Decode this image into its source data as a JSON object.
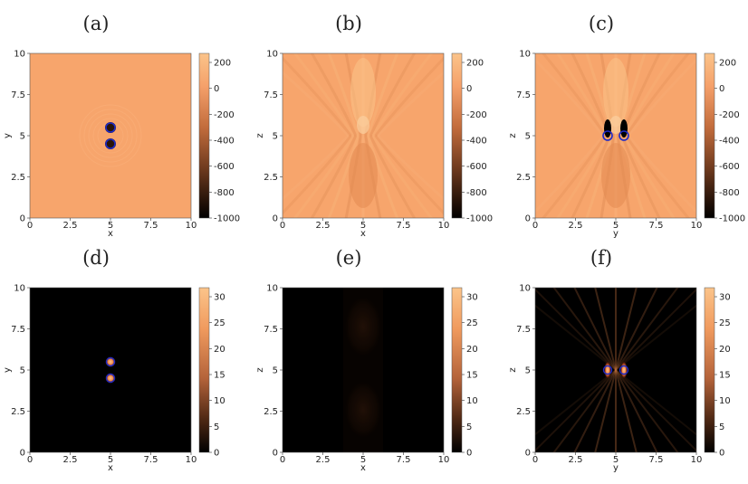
{
  "panels": [
    {
      "id": "a",
      "label": "(a)",
      "xlabel": "x",
      "ylabel": "y",
      "kind": "flat-ring",
      "colorbar_ticks": [
        "200",
        "0",
        "-200",
        "-400",
        "-600",
        "-800",
        "-1000"
      ]
    },
    {
      "id": "b",
      "label": "(b)",
      "xlabel": "x",
      "ylabel": "z",
      "kind": "hourglass",
      "colorbar_ticks": [
        "200",
        "0",
        "-200",
        "-400",
        "-600",
        "-800",
        "-1000"
      ]
    },
    {
      "id": "c",
      "label": "(c)",
      "xlabel": "y",
      "ylabel": "z",
      "kind": "fringe-ring",
      "colorbar_ticks": [
        "200",
        "0",
        "-200",
        "-400",
        "-600",
        "-800",
        "-1000"
      ]
    },
    {
      "id": "d",
      "label": "(d)",
      "xlabel": "x",
      "ylabel": "y",
      "kind": "dark-spots",
      "colorbar_ticks": [
        "30",
        "25",
        "20",
        "15",
        "10",
        "5",
        "0"
      ]
    },
    {
      "id": "e",
      "label": "(e)",
      "xlabel": "x",
      "ylabel": "z",
      "kind": "dark-faint",
      "colorbar_ticks": [
        "30",
        "25",
        "20",
        "15",
        "10",
        "5",
        "0"
      ]
    },
    {
      "id": "f",
      "label": "(f)",
      "xlabel": "y",
      "ylabel": "z",
      "kind": "dark-fringe",
      "colorbar_ticks": [
        "30",
        "25",
        "20",
        "15",
        "10",
        "5",
        "0"
      ]
    }
  ],
  "x_ticks": [
    "0",
    "2.5",
    "5",
    "7.5",
    "10"
  ],
  "y_ticks": [
    "10",
    "7.5",
    "5",
    "2.5",
    "0"
  ],
  "colors": {
    "background_top": "#f7a56c",
    "colormap_top": "#f7ad74",
    "background_bottom": "#000000",
    "colormap_high": "#fbc48a",
    "ring": "#1e2ac8"
  }
}
